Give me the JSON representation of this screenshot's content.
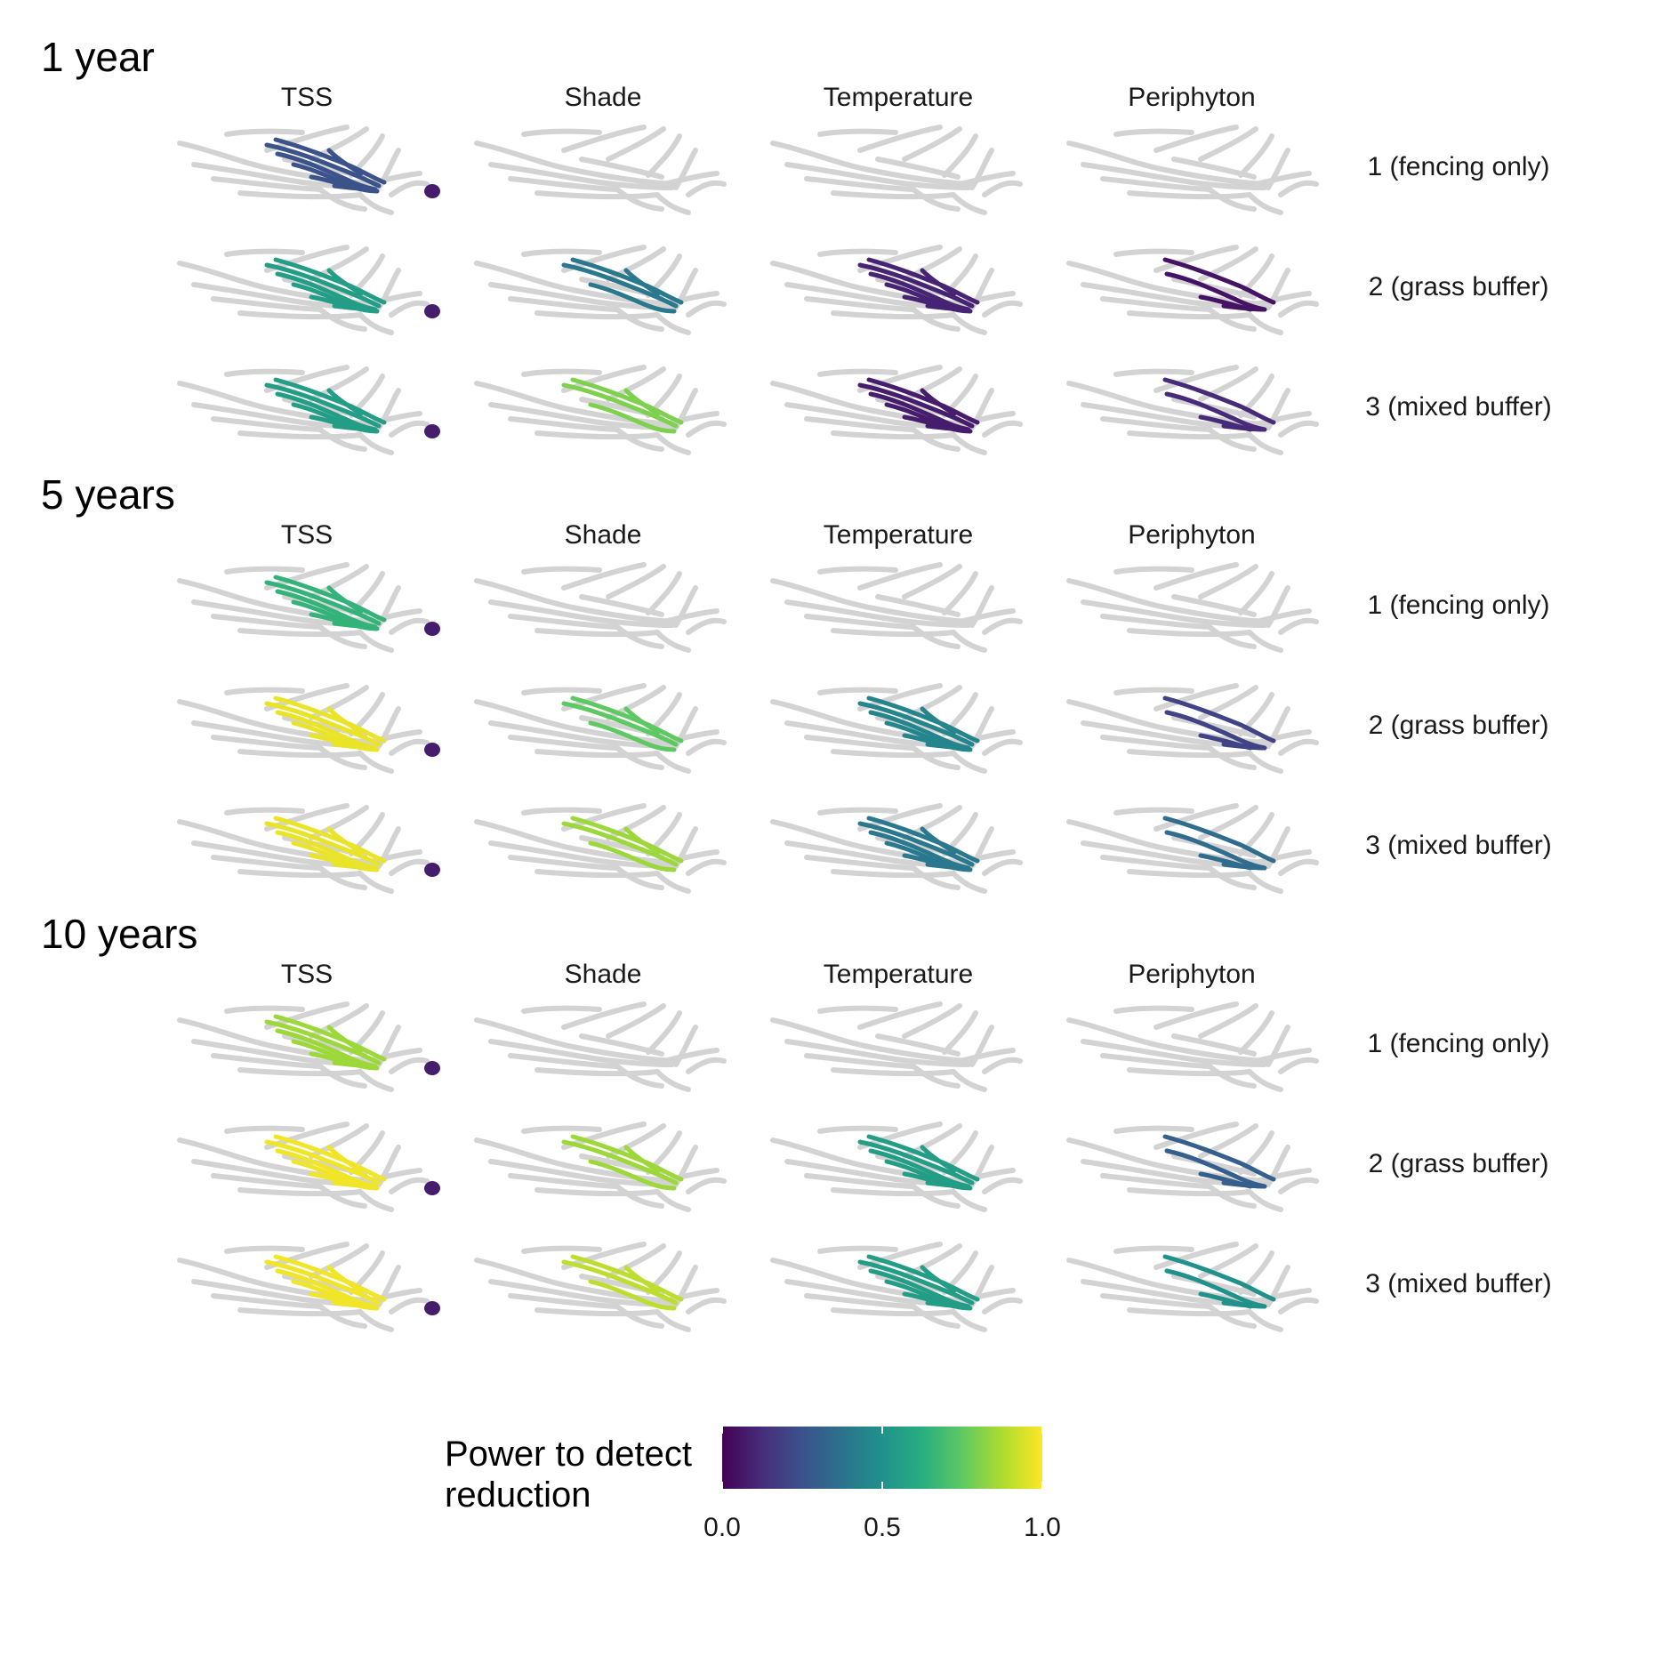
{
  "chart_data": {
    "type": "small-multiple stream network maps",
    "periods": [
      "1 year",
      "5 years",
      "10 years"
    ],
    "indicators": [
      "TSS",
      "Shade",
      "Temperature",
      "Periphyton"
    ],
    "scenarios": [
      "1 (fencing only)",
      "2 (grass buffer)",
      "3 (mixed buffer)"
    ],
    "network_color": "#d3d3d3",
    "colorbar": {
      "title_lines": [
        "Power to detect",
        "reduction"
      ],
      "range": [
        0,
        1
      ],
      "ticks": [
        0,
        0.5,
        1
      ],
      "tick_labels": [
        "0.0",
        "0.5",
        "1.0"
      ],
      "palette": [
        "#440154",
        "#472d7b",
        "#3b528b",
        "#2c728e",
        "#21918c",
        "#28ae80",
        "#5ec962",
        "#addc30",
        "#fde725"
      ]
    },
    "panels": {
      "1 year": {
        "TSS": {
          "1 (fencing only)": 0.25,
          "2 (grass buffer)": 0.55,
          "3 (mixed buffer)": 0.55
        },
        "Shade": {
          "1 (fencing only)": null,
          "2 (grass buffer)": 0.4,
          "3 (mixed buffer)": 0.8
        },
        "Temperature": {
          "1 (fencing only)": null,
          "2 (grass buffer)": 0.1,
          "3 (mixed buffer)": 0.08
        },
        "Periphyton": {
          "1 (fencing only)": null,
          "2 (grass buffer)": 0.05,
          "3 (mixed buffer)": 0.12
        }
      },
      "5 years": {
        "TSS": {
          "1 (fencing only)": 0.65,
          "2 (grass buffer)": 0.97,
          "3 (mixed buffer)": 0.97
        },
        "Shade": {
          "1 (fencing only)": null,
          "2 (grass buffer)": 0.75,
          "3 (mixed buffer)": 0.85
        },
        "Temperature": {
          "1 (fencing only)": null,
          "2 (grass buffer)": 0.45,
          "3 (mixed buffer)": 0.4
        },
        "Periphyton": {
          "1 (fencing only)": null,
          "2 (grass buffer)": 0.2,
          "3 (mixed buffer)": 0.35
        }
      },
      "10 years": {
        "TSS": {
          "1 (fencing only)": 0.85,
          "2 (grass buffer)": 0.98,
          "3 (mixed buffer)": 0.98
        },
        "Shade": {
          "1 (fencing only)": null,
          "2 (grass buffer)": 0.85,
          "3 (mixed buffer)": 0.9
        },
        "Temperature": {
          "1 (fencing only)": null,
          "2 (grass buffer)": 0.55,
          "3 (mixed buffer)": 0.55
        },
        "Periphyton": {
          "1 (fencing only)": null,
          "2 (grass buffer)": 0.3,
          "3 (mixed buffer)": 0.5
        }
      }
    }
  }
}
